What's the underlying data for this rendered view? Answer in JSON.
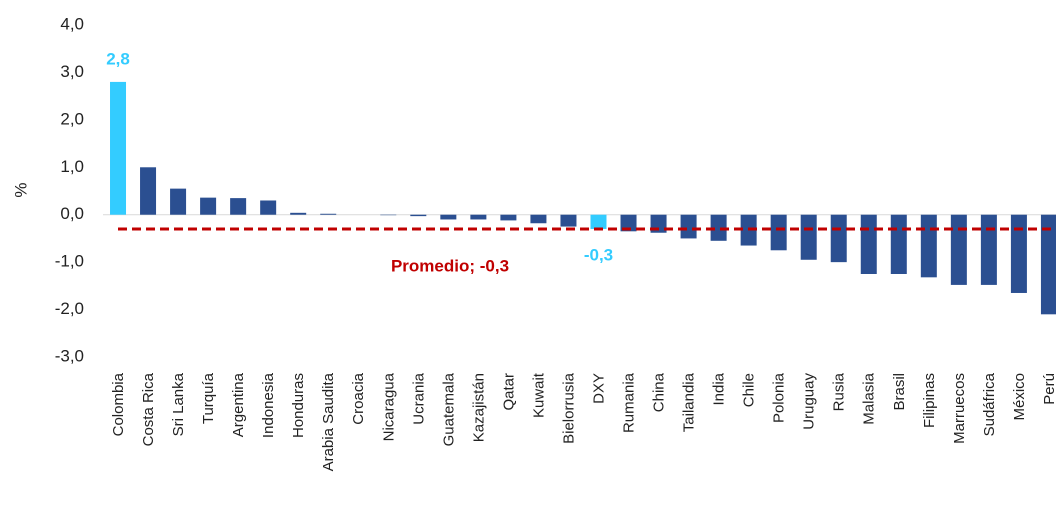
{
  "chart_data": {
    "type": "bar",
    "ylabel": "%",
    "categories": [
      "Colombia",
      "Costa Rica",
      "Sri Lanka",
      "Turquía",
      "Argentina",
      "Indonesia",
      "Honduras",
      "Arabia Saudita",
      "Croacia",
      "Nicaragua",
      "Ucrania",
      "Guatemala",
      "Kazajistán",
      "Qatar",
      "Kuwait",
      "Bielorrusia",
      "DXY",
      "Rumania",
      "China",
      "Tailandia",
      "India",
      "Chile",
      "Polonia",
      "Uruguay",
      "Rusia",
      "Malasia",
      "Brasil",
      "Filipinas",
      "Marruecos",
      "Sudáfrica",
      "México",
      "Perú"
    ],
    "values": [
      2.8,
      1.0,
      0.55,
      0.36,
      0.35,
      0.3,
      0.04,
      0.02,
      0.0,
      -0.01,
      -0.03,
      -0.1,
      -0.1,
      -0.12,
      -0.18,
      -0.25,
      -0.3,
      -0.35,
      -0.38,
      -0.5,
      -0.55,
      -0.65,
      -0.75,
      -0.95,
      -1.0,
      -1.25,
      -1.25,
      -1.32,
      -1.48,
      -1.48,
      -1.65,
      -2.1
    ],
    "value_labels": [
      "2,8",
      null,
      null,
      null,
      null,
      null,
      null,
      null,
      null,
      null,
      null,
      null,
      null,
      null,
      null,
      null,
      "-0,3",
      null,
      null,
      null,
      null,
      null,
      null,
      null,
      null,
      null,
      null,
      null,
      null,
      null,
      null,
      null
    ],
    "colors": [
      "#33ccff",
      "#2b4f91",
      "#2b4f91",
      "#2b4f91",
      "#2b4f91",
      "#2b4f91",
      "#2b4f91",
      "#2b4f91",
      "#2b4f91",
      "#2b4f91",
      "#2b4f91",
      "#2b4f91",
      "#2b4f91",
      "#2b4f91",
      "#2b4f91",
      "#2b4f91",
      "#33ccff",
      "#2b4f91",
      "#2b4f91",
      "#2b4f91",
      "#2b4f91",
      "#2b4f91",
      "#2b4f91",
      "#2b4f91",
      "#2b4f91",
      "#2b4f91",
      "#2b4f91",
      "#2b4f91",
      "#2b4f91",
      "#2b4f91",
      "#2b4f91",
      "#2b4f91"
    ],
    "average": {
      "label": "Promedio; -0,3",
      "value": -0.3,
      "color": "#c00000"
    },
    "ylim": [
      -3.0,
      4.0
    ],
    "yticks": [
      {
        "value": -3.0,
        "label": "-3,0"
      },
      {
        "value": -2.0,
        "label": "-2,0"
      },
      {
        "value": -1.0,
        "label": "-1,0"
      },
      {
        "value": 0.0,
        "label": "0,0"
      },
      {
        "value": 1.0,
        "label": "1,0"
      },
      {
        "value": 2.0,
        "label": "2,0"
      },
      {
        "value": 3.0,
        "label": "3,0"
      },
      {
        "value": 4.0,
        "label": "4,0"
      }
    ],
    "grid": false
  }
}
